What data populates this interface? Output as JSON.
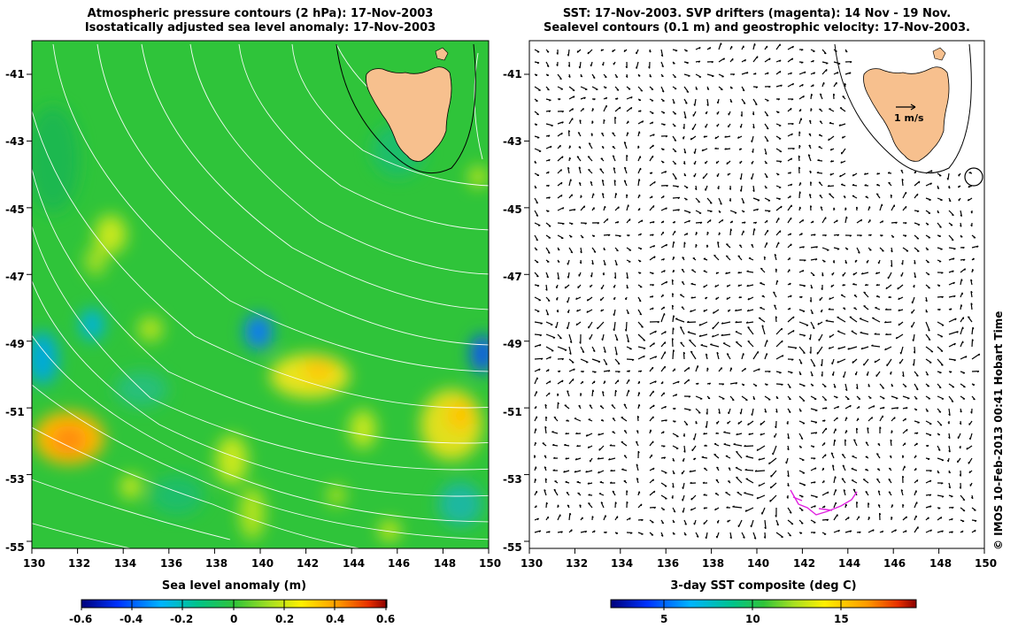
{
  "left_panel": {
    "title_line1": "Atmospheric pressure contours (2 hPa): 17-Nov-2003",
    "title_line2": "Isostatically adjusted sea level anomaly: 17-Nov-2003",
    "colorbar_title": "Sea level anomaly (m)",
    "colorbar_ticks": [
      "-0.6",
      "-0.4",
      "-0.2",
      "0",
      "0.2",
      "0.4",
      "0.6"
    ]
  },
  "right_panel": {
    "title_line1": "SST: 17-Nov-2003. SVP drifters (magenta): 14 Nov - 19 Nov.",
    "title_line2": "Sealevel contours (0.1 m) and geostrophic velocity: 17-Nov-2003.",
    "scale_label": "1 m/s",
    "colorbar_title": "3-day SST composite (deg C)",
    "colorbar_ticks": [
      "5",
      "10",
      "15"
    ]
  },
  "axes": {
    "x_ticks": [
      "130",
      "132",
      "134",
      "136",
      "138",
      "140",
      "142",
      "144",
      "146",
      "148",
      "150"
    ],
    "y_ticks": [
      "-41",
      "-43",
      "-45",
      "-47",
      "-49",
      "-51",
      "-53",
      "-55"
    ]
  },
  "credit": "© IMOS 10-Feb-2013 00:41 Hobart Time",
  "colors": {
    "land": "#f7c08e",
    "ocean_base": "#2fc43a",
    "drifter": "#e020e0"
  }
}
